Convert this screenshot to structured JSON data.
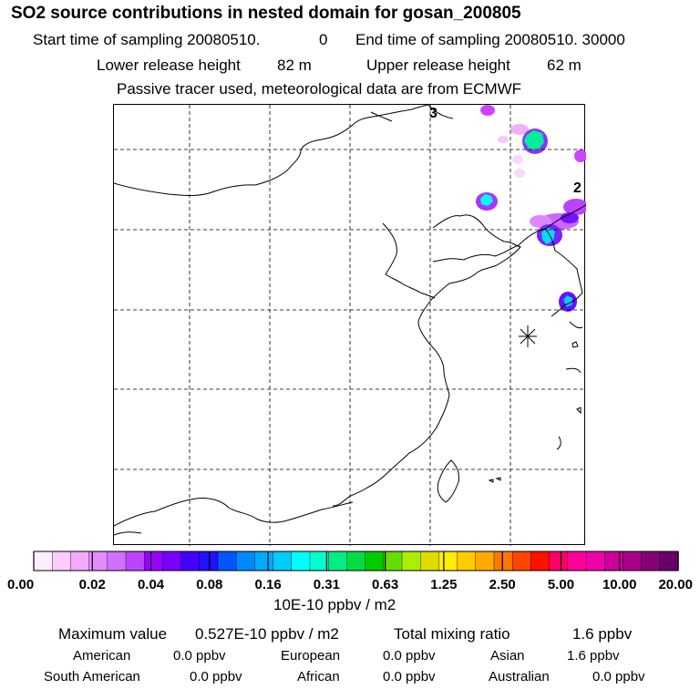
{
  "header": {
    "title": "SO2 source contributions in nested domain for gosan_200805",
    "start_label": "Start time of sampling 20080510.",
    "start_value": "0",
    "end_label": "End time of sampling 20080510. 30000",
    "lower_label": "Lower release height",
    "lower_value": "82 m",
    "upper_label": "Upper release height",
    "upper_value": "62 m",
    "info": "Passive tracer used, meteorological data are from ECMWF"
  },
  "map": {
    "label_3": "3",
    "label_2": "2"
  },
  "colorbar": {
    "colors": [
      "#ffeeff",
      "#ffccff",
      "#f5aaff",
      "#e38cff",
      "#d070ff",
      "#bb44ff",
      "#9900ff",
      "#7700ff",
      "#4400ff",
      "#2211ff",
      "#0055ff",
      "#0088ff",
      "#00aaff",
      "#00ccff",
      "#00ffff",
      "#00ffcc",
      "#00ee88",
      "#00dd44",
      "#00cc00",
      "#66dd00",
      "#aaee00",
      "#dddd00",
      "#ffee00",
      "#ffcc00",
      "#ffaa00",
      "#ff7700",
      "#ff4400",
      "#ff1100",
      "#ff0066",
      "#ff0099",
      "#ee00aa",
      "#cc0099",
      "#aa0088",
      "#880077",
      "#660066"
    ],
    "ticks": [
      "0.00",
      "0.02",
      "0.04",
      "0.08",
      "0.16",
      "0.31",
      "0.63",
      "1.25",
      "2.50",
      "5.00",
      "10.00",
      "20.00"
    ],
    "unit": "10E-10 ppbv / m2"
  },
  "stats": {
    "max_label": "Maximum value",
    "max_value": "0.527E-10 ppbv / m2",
    "total_label": "Total mixing ratio",
    "total_value": "1.6 ppbv",
    "regions": [
      {
        "name": "American",
        "value": "0.0 ppbv"
      },
      {
        "name": "European",
        "value": "0.0 ppbv"
      },
      {
        "name": "Asian",
        "value": "1.6 ppbv"
      },
      {
        "name": "South American",
        "value": "0.0 ppbv"
      },
      {
        "name": "African",
        "value": "0.0 ppbv"
      },
      {
        "name": "Australian",
        "value": "0.0 ppbv"
      }
    ]
  }
}
